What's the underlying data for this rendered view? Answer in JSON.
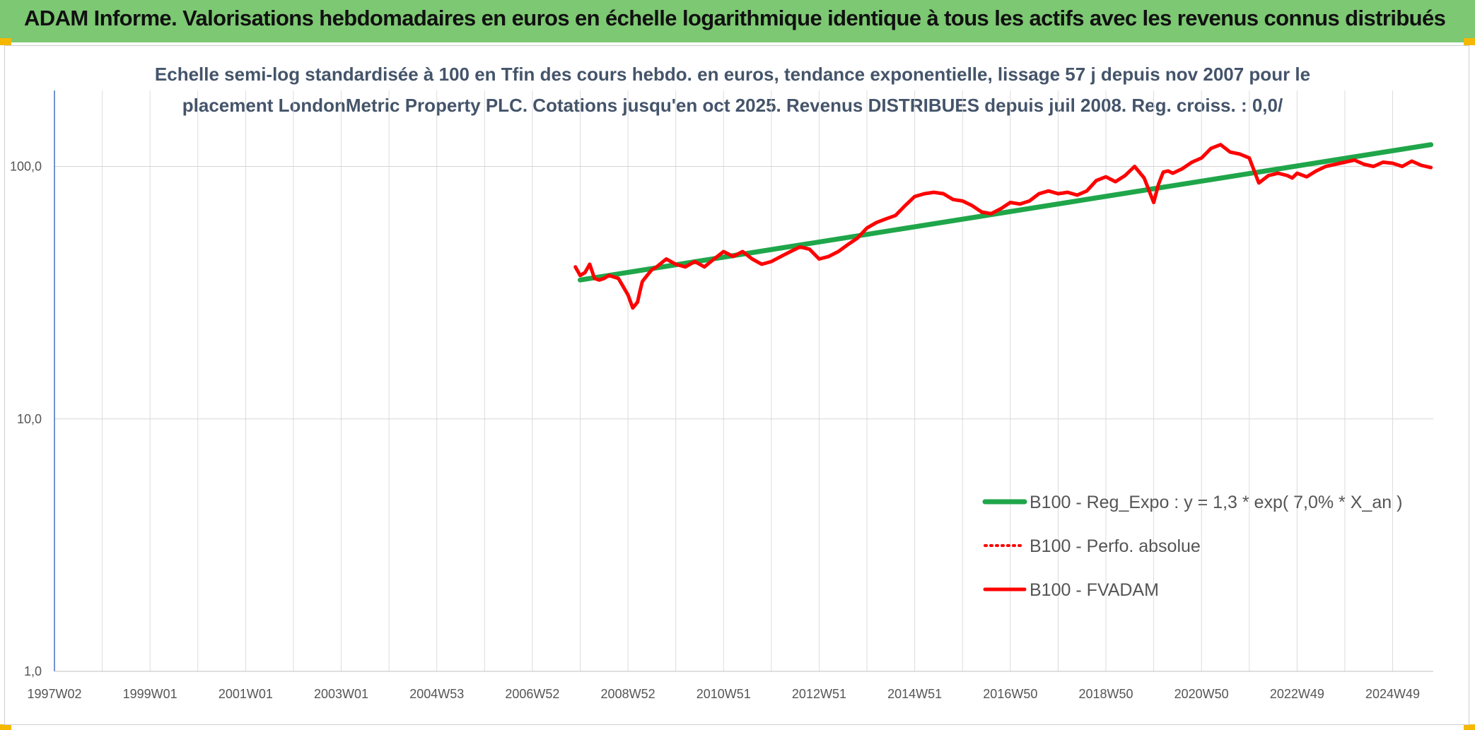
{
  "header": {
    "title": "ADAM Informe. Valorisations hebdomadaires en euros en échelle logarithmique identique à tous les actifs avec les revenus connus distribués",
    "background": "#7dc873"
  },
  "chart_data": {
    "type": "line",
    "title_lines": [
      "Echelle semi-log standardisée à 100 en Tfin des cours hebdo. en euros, tendance exponentielle, lissage 57 j depuis nov 2007 pour le",
      "placement LondonMetric Property PLC. Cotations jusqu'en oct 2025. Revenus DISTRIBUES depuis juil 2008. Reg. croiss. : 0,0/"
    ],
    "yscale": "log",
    "ylim": [
      1,
      200
    ],
    "y_ticks": [
      {
        "value": 1,
        "label": "1,0"
      },
      {
        "value": 10,
        "label": "10,0"
      },
      {
        "value": 100,
        "label": "100,0"
      }
    ],
    "xlim": [
      1997.0,
      2025.85
    ],
    "x_ticks": [
      {
        "value": 1997.0,
        "label": "1997W02"
      },
      {
        "value": 1999.0,
        "label": "1999W01"
      },
      {
        "value": 2001.0,
        "label": "2001W01"
      },
      {
        "value": 2003.0,
        "label": "2003W01"
      },
      {
        "value": 2005.0,
        "label": "2004W53"
      },
      {
        "value": 2007.0,
        "label": "2006W52"
      },
      {
        "value": 2009.0,
        "label": "2008W52"
      },
      {
        "value": 2011.0,
        "label": "2010W51"
      },
      {
        "value": 2013.0,
        "label": "2012W51"
      },
      {
        "value": 2015.0,
        "label": "2014W51"
      },
      {
        "value": 2017.0,
        "label": "2016W50"
      },
      {
        "value": 2019.0,
        "label": "2018W50"
      },
      {
        "value": 2021.0,
        "label": "2020W50"
      },
      {
        "value": 2023.0,
        "label": "2022W49"
      },
      {
        "value": 2025.0,
        "label": "2024W49"
      }
    ],
    "grid": true,
    "legend_position": "right",
    "series": [
      {
        "name": "B100 - Reg_Expo : y = 1,3 * exp( 7,0% *  X_an )",
        "color": "#1fa64a",
        "style": "solid",
        "x": [
          2008.0,
          2025.8
        ],
        "y": [
          35.5,
          122
        ]
      },
      {
        "name": "B100 - Perfo. absolue",
        "color": "#ff0000",
        "style": "dotted",
        "x": [],
        "y": []
      },
      {
        "name": "B100 - FVADAM",
        "color": "#ff0000",
        "style": "solid",
        "x": [
          2007.9,
          2008.0,
          2008.1,
          2008.2,
          2008.3,
          2008.4,
          2008.5,
          2008.6,
          2008.8,
          2009.0,
          2009.1,
          2009.2,
          2009.25,
          2009.3,
          2009.4,
          2009.5,
          2009.6,
          2009.8,
          2010.0,
          2010.2,
          2010.4,
          2010.6,
          2010.8,
          2011.0,
          2011.2,
          2011.4,
          2011.6,
          2011.8,
          2012.0,
          2012.2,
          2012.4,
          2012.6,
          2012.8,
          2013.0,
          2013.2,
          2013.4,
          2013.6,
          2013.8,
          2014.0,
          2014.2,
          2014.4,
          2014.6,
          2014.8,
          2015.0,
          2015.2,
          2015.4,
          2015.6,
          2015.8,
          2016.0,
          2016.2,
          2016.4,
          2016.6,
          2016.8,
          2017.0,
          2017.2,
          2017.4,
          2017.6,
          2017.8,
          2018.0,
          2018.2,
          2018.4,
          2018.6,
          2018.8,
          2019.0,
          2019.2,
          2019.4,
          2019.6,
          2019.8,
          2020.0,
          2020.1,
          2020.2,
          2020.3,
          2020.4,
          2020.6,
          2020.8,
          2021.0,
          2021.2,
          2021.4,
          2021.6,
          2021.8,
          2022.0,
          2022.2,
          2022.4,
          2022.6,
          2022.8,
          2022.9,
          2023.0,
          2023.2,
          2023.4,
          2023.6,
          2023.8,
          2024.0,
          2024.2,
          2024.4,
          2024.6,
          2024.8,
          2025.0,
          2025.2,
          2025.4,
          2025.6,
          2025.8
        ],
        "y": [
          40,
          37,
          38,
          41,
          36,
          35.5,
          36,
          37,
          36,
          31,
          27.5,
          29,
          32,
          35,
          37,
          39,
          40,
          43,
          41,
          40,
          42,
          40,
          43,
          46,
          44,
          46,
          43,
          41,
          42,
          44,
          46,
          48,
          47,
          43,
          44,
          46,
          49,
          52,
          57,
          60,
          62,
          64,
          70,
          76,
          78,
          79,
          78,
          74,
          73,
          70,
          66,
          65,
          68,
          72,
          71,
          73,
          78,
          80,
          78,
          79,
          77,
          80,
          88,
          91,
          87,
          92,
          100,
          90,
          72,
          85,
          95,
          96,
          94,
          98,
          104,
          108,
          118,
          122,
          114,
          112,
          108,
          86,
          92,
          94,
          92,
          90,
          94,
          91,
          96,
          100,
          102,
          104,
          106,
          102,
          100,
          104,
          103,
          100,
          105,
          101,
          99
        ]
      }
    ]
  }
}
